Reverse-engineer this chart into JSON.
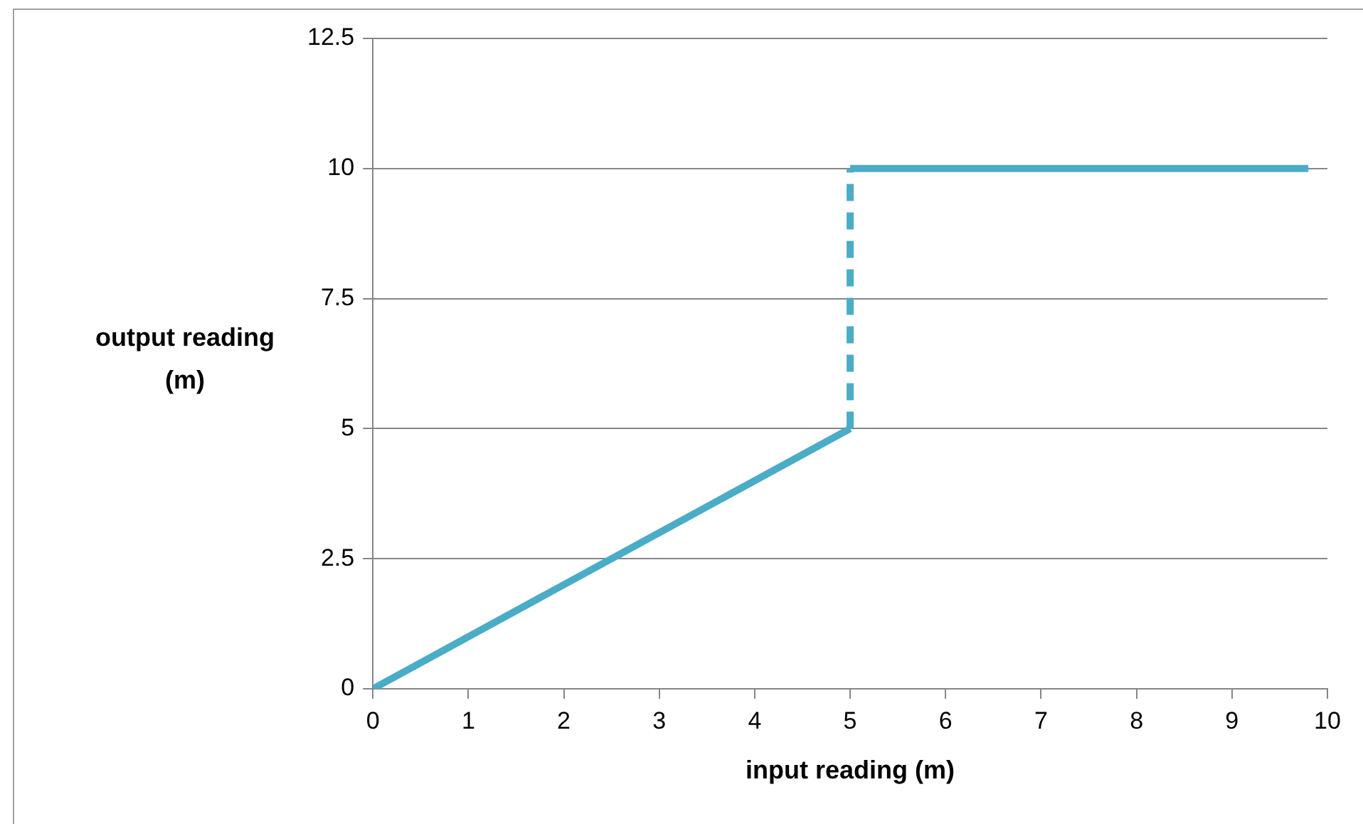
{
  "chart_data": {
    "type": "line",
    "xlabel": "input reading (m)",
    "ylabel": "output reading (m)",
    "xlim": [
      0,
      10
    ],
    "xticks": [
      0,
      1,
      2,
      3,
      4,
      5,
      6,
      7,
      8,
      9,
      10
    ],
    "ylim": [
      0,
      12.5
    ],
    "yticks": [
      0,
      2.5,
      5,
      7.5,
      10,
      12.5
    ],
    "grid": "y",
    "legend": false,
    "marker": "none",
    "series": [
      {
        "color": "#4bacc6",
        "x": [
          0,
          5
        ],
        "values": [
          0,
          5
        ],
        "line_style": "solid"
      },
      {
        "color": "#4bacc6",
        "x": [
          5,
          5
        ],
        "values": [
          5,
          10
        ],
        "line_style": "dashed"
      },
      {
        "color": "#4bacc6",
        "x": [
          5,
          9.8
        ],
        "values": [
          10,
          10
        ],
        "line_style": "solid"
      }
    ]
  }
}
